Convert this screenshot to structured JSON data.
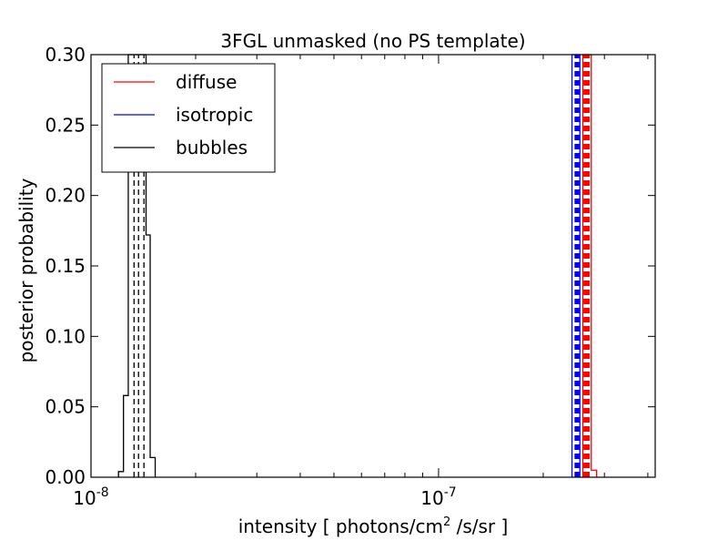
{
  "chart_data": {
    "type": "histogram",
    "title": "3FGL unmasked (no PS template)",
    "xlabel_prefix": "intensity [ photons/cm",
    "xlabel_sup": "2",
    "xlabel_suffix": " /s/sr ]",
    "ylabel": "posterior probability",
    "xscale": "log",
    "xlim": [
      1e-08,
      4.2e-07
    ],
    "ylim": [
      0,
      0.3
    ],
    "grid": false,
    "legend_position": "top-left",
    "x_ticks": [
      {
        "value": 1e-08,
        "base": "10",
        "exp": "-8"
      },
      {
        "value": 1e-07,
        "base": "10",
        "exp": "-7"
      }
    ],
    "y_ticks": [
      {
        "value": 0.0,
        "label": "0.00"
      },
      {
        "value": 0.05,
        "label": "0.05"
      },
      {
        "value": 0.1,
        "label": "0.10"
      },
      {
        "value": 0.15,
        "label": "0.15"
      },
      {
        "value": 0.2,
        "label": "0.20"
      },
      {
        "value": 0.25,
        "label": "0.25"
      },
      {
        "value": 0.3,
        "label": "0.30"
      }
    ],
    "series": [
      {
        "name": "diffuse",
        "color": "#ff0000",
        "bins": [
          {
            "x0": 2.6e-07,
            "x1": 2.62e-07,
            "p": 0.3
          },
          {
            "x0": 2.62e-07,
            "x1": 2.7e-07,
            "p": 0.3
          },
          {
            "x0": 2.7e-07,
            "x1": 2.75e-07,
            "p": 0.3
          },
          {
            "x0": 2.75e-07,
            "x1": 2.85e-07,
            "p": 0.005
          }
        ],
        "quantile_lines": [
          2.63e-07,
          2.665e-07,
          2.7e-07
        ]
      },
      {
        "name": "isotropic",
        "color": "#0000ff",
        "bins": [
          {
            "x0": 2.42e-07,
            "x1": 2.49e-07,
            "p": 0.3
          },
          {
            "x0": 2.49e-07,
            "x1": 2.52e-07,
            "p": 0.3
          },
          {
            "x0": 2.52e-07,
            "x1": 2.55e-07,
            "p": 0.3
          }
        ],
        "quantile_lines": [
          2.48e-07,
          2.5e-07,
          2.52e-07
        ]
      },
      {
        "name": "bubbles",
        "color": "#000000",
        "bins": [
          {
            "x0": 1.2e-08,
            "x1": 1.24e-08,
            "p": 0.004
          },
          {
            "x0": 1.24e-08,
            "x1": 1.28e-08,
            "p": 0.058
          },
          {
            "x0": 1.28e-08,
            "x1": 1.32e-08,
            "p": 0.3
          },
          {
            "x0": 1.32e-08,
            "x1": 1.36e-08,
            "p": 0.3
          },
          {
            "x0": 1.36e-08,
            "x1": 1.4e-08,
            "p": 0.3
          },
          {
            "x0": 1.4e-08,
            "x1": 1.44e-08,
            "p": 0.3
          },
          {
            "x0": 1.44e-08,
            "x1": 1.48e-08,
            "p": 0.172
          },
          {
            "x0": 1.48e-08,
            "x1": 1.53e-08,
            "p": 0.014
          }
        ],
        "quantile_lines": [
          1.33e-08,
          1.37e-08,
          1.42e-08
        ]
      }
    ]
  }
}
